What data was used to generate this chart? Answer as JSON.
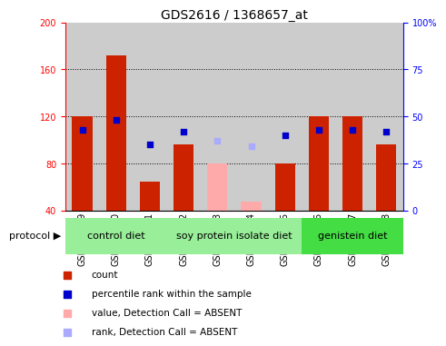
{
  "title": "GDS2616 / 1368657_at",
  "samples": [
    "GSM158579",
    "GSM158580",
    "GSM158581",
    "GSM158582",
    "GSM158583",
    "GSM158584",
    "GSM158585",
    "GSM158586",
    "GSM158587",
    "GSM158588"
  ],
  "count_values": [
    120,
    172,
    65,
    96,
    null,
    null,
    80,
    120,
    120,
    96
  ],
  "rank_pct": [
    43,
    48,
    35,
    42,
    null,
    null,
    40,
    43,
    43,
    42
  ],
  "absent_count": [
    null,
    null,
    null,
    null,
    80,
    48,
    null,
    null,
    null,
    null
  ],
  "absent_rank_pct": [
    null,
    null,
    null,
    null,
    37,
    34,
    null,
    null,
    null,
    null
  ],
  "ylim_left": [
    40,
    200
  ],
  "ylim_right": [
    0,
    100
  ],
  "yticks_left": [
    40,
    80,
    120,
    160,
    200
  ],
  "yticks_right": [
    0,
    25,
    50,
    75,
    100
  ],
  "ytick_labels_right": [
    "0",
    "25",
    "50",
    "75",
    "100%"
  ],
  "bar_color": "#cc2200",
  "absent_bar_color": "#ffaaaa",
  "absent_rank_color": "#aaaaff",
  "dot_color": "#0000cc",
  "col_bg_color": "#cccccc",
  "group_defs": [
    {
      "label": "control diet",
      "start": 0,
      "end": 2,
      "color": "#99ee99"
    },
    {
      "label": "soy protein isolate diet",
      "start": 3,
      "end": 6,
      "color": "#99ee99"
    },
    {
      "label": "genistein diet",
      "start": 7,
      "end": 9,
      "color": "#44dd44"
    }
  ],
  "legend_items": [
    {
      "color": "#cc2200",
      "label": "count"
    },
    {
      "color": "#0000cc",
      "label": "percentile rank within the sample"
    },
    {
      "color": "#ffaaaa",
      "label": "value, Detection Call = ABSENT"
    },
    {
      "color": "#aaaaff",
      "label": "rank, Detection Call = ABSENT"
    }
  ],
  "protocol_label": "protocol",
  "title_fontsize": 10,
  "tick_fontsize": 7,
  "group_fontsize": 8,
  "legend_fontsize": 7.5
}
